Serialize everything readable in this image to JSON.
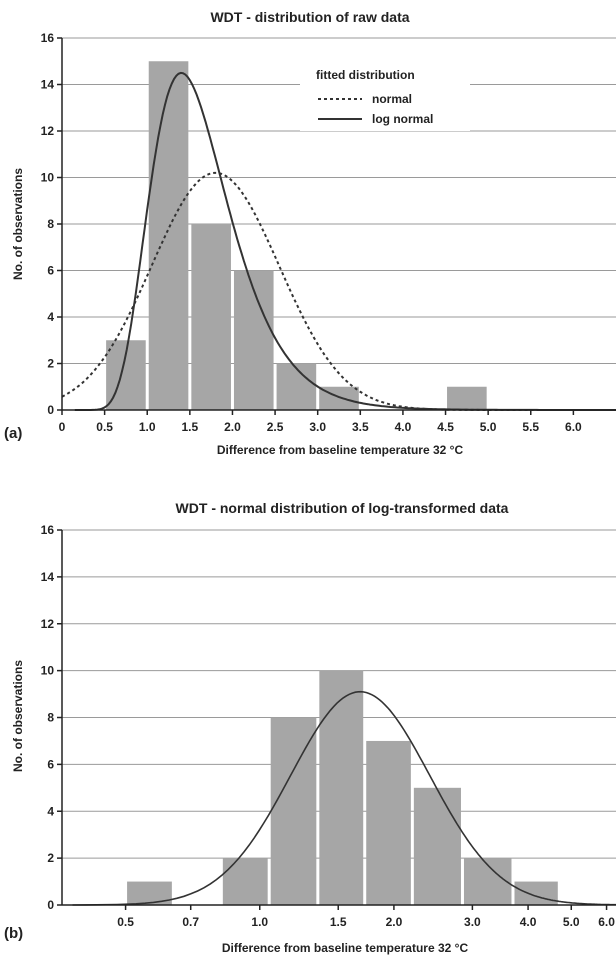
{
  "chart_data": [
    {
      "type": "bar",
      "panel_label": "(a)",
      "title": "WDT - distribution of raw data",
      "xlabel": "Difference from baseline temperature 32 °C",
      "ylabel": "No. of observations",
      "x_ticks": [
        "0",
        "0.5",
        "1.0",
        "1.5",
        "2.0",
        "2.5",
        "3.0",
        "3.5",
        "4.0",
        "4.5",
        "5.0",
        "5.5",
        "6.0"
      ],
      "y_ticks": [
        "0",
        "2",
        "4",
        "6",
        "8",
        "10",
        "12",
        "14",
        "16"
      ],
      "xlim": [
        0,
        6.5
      ],
      "ylim": [
        0,
        16
      ],
      "grid": "horizontal",
      "bins": [
        {
          "from": 0.5,
          "to": 1.0,
          "value": 3
        },
        {
          "from": 1.0,
          "to": 1.5,
          "value": 15
        },
        {
          "from": 1.5,
          "to": 2.0,
          "value": 8
        },
        {
          "from": 2.0,
          "to": 2.5,
          "value": 6
        },
        {
          "from": 2.5,
          "to": 3.0,
          "value": 2
        },
        {
          "from": 3.0,
          "to": 3.5,
          "value": 1
        },
        {
          "from": 3.5,
          "to": 4.0,
          "value": 0
        },
        {
          "from": 4.0,
          "to": 4.5,
          "value": 0
        },
        {
          "from": 4.5,
          "to": 5.0,
          "value": 1
        }
      ],
      "legend": {
        "title": "fitted distribution",
        "position": "top-right",
        "entries": [
          {
            "label": "normal",
            "style": "dotted"
          },
          {
            "label": "log normal",
            "style": "solid"
          }
        ]
      },
      "curves": [
        {
          "name": "normal",
          "style": "dotted",
          "kind": "normal",
          "peak_x": 1.8,
          "peak_y": 10.2,
          "sd": 0.75
        },
        {
          "name": "log normal",
          "style": "solid",
          "kind": "lognormal",
          "peak_x": 1.4,
          "peak_y": 14.5,
          "log_sd": 0.33
        }
      ]
    },
    {
      "type": "bar",
      "panel_label": "(b)",
      "title": "WDT - normal distribution of log-transformed data",
      "xlabel": "Difference from baseline temperature 32 °C",
      "ylabel": "No. of observations",
      "x_scale": "log",
      "x_ticks": [
        "0.5",
        "0.7",
        "1.0",
        "1.5",
        "2.0",
        "3.0",
        "4.0",
        "5.0",
        "6.0"
      ],
      "y_ticks": [
        "0",
        "2",
        "4",
        "6",
        "8",
        "10",
        "12",
        "14",
        "16"
      ],
      "xlim": [
        0.36,
        6.0
      ],
      "ylim": [
        0,
        16
      ],
      "grid": "horizontal",
      "bins": [
        {
          "from": 0.5,
          "to": 0.64,
          "value": 1
        },
        {
          "from": 0.64,
          "to": 0.82,
          "value": 0
        },
        {
          "from": 0.82,
          "to": 1.05,
          "value": 2
        },
        {
          "from": 1.05,
          "to": 1.35,
          "value": 8
        },
        {
          "from": 1.35,
          "to": 1.72,
          "value": 10
        },
        {
          "from": 1.72,
          "to": 2.2,
          "value": 7
        },
        {
          "from": 2.2,
          "to": 2.85,
          "value": 5
        },
        {
          "from": 2.85,
          "to": 3.7,
          "value": 2
        },
        {
          "from": 3.7,
          "to": 4.7,
          "value": 1
        }
      ],
      "curves": [
        {
          "name": "normal",
          "style": "solid",
          "kind": "normal-log",
          "peak_x": 1.68,
          "peak_y": 9.1,
          "log_sd": 0.36
        }
      ]
    }
  ]
}
